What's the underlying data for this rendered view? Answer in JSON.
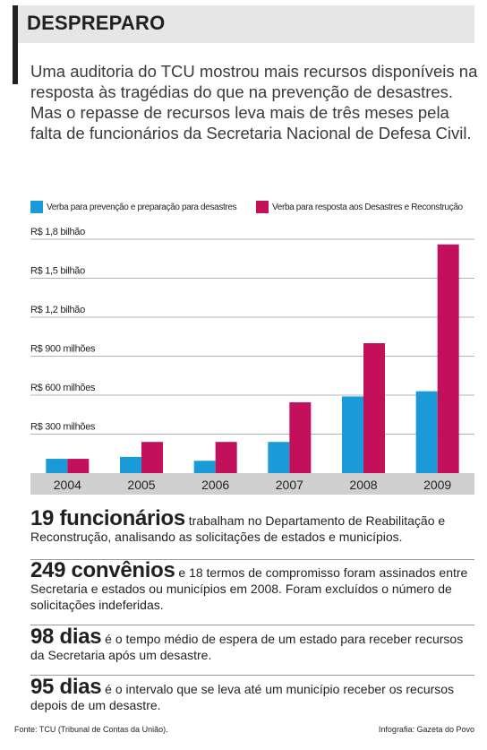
{
  "header": {
    "title": "DESPREPARO"
  },
  "intro": "Uma auditoria  do TCU mostrou mais recursos disponíveis na resposta às tragédias do que na prevenção de desastres. Mas o repasse de recursos leva mais de três meses pela falta de funcionários da Secretaria Nacional de Defesa Civil.",
  "colors": {
    "prevention": "#1a9ad6",
    "response": "#c2105a",
    "axis_band": "#cfcfcf",
    "grid": "#9a9a9a"
  },
  "chart_data": {
    "type": "bar",
    "categories": [
      "2004",
      "2005",
      "2006",
      "2007",
      "2008",
      "2009"
    ],
    "series": [
      {
        "name": "Verba para prevenção e preparação para desastres",
        "color": "#1a9ad6",
        "values": [
          110,
          125,
          95,
          240,
          590,
          630
        ]
      },
      {
        "name": "Verba para resposta aos Desastres e Reconstrução",
        "color": "#c2105a",
        "values": [
          110,
          240,
          240,
          545,
          1000,
          1760
        ]
      }
    ],
    "ylim": [
      0,
      1800
    ],
    "yticks": [
      300,
      600,
      900,
      1200,
      1500,
      1800
    ],
    "ytick_labels": [
      "R$ 300 milhões",
      "R$ 600 milhões",
      "R$ 900 milhões",
      "R$ 1,2 bilhão",
      "R$ 1,5 bilhão",
      "R$ 1,8 bilhão"
    ],
    "unit": "milhões de reais",
    "grid": true,
    "legend_position": "top"
  },
  "facts": [
    {
      "number": "19 funcionários",
      "text": " trabalham no Departamento de Reabilitação e Reconstrução, analisando as solicitações de estados e municípios."
    },
    {
      "number": "249 convênios",
      "text": " e 18 termos de compromisso foram assinados entre Secretaria e estados ou municípios em 2008. Foram excluídos o número de solicitações indeferidas."
    },
    {
      "number": "98 dias",
      "text": " é o tempo médio de espera de um estado para receber recursos da Secretaria após um desastre."
    },
    {
      "number": "95 dias",
      "text": " é o intervalo que se leva até um município receber os recursos depois de um desastre."
    }
  ],
  "footer": {
    "source": "Fonte: TCU (Tribunal de Contas da União).",
    "credit": "Infografia: Gazeta do Povo"
  }
}
